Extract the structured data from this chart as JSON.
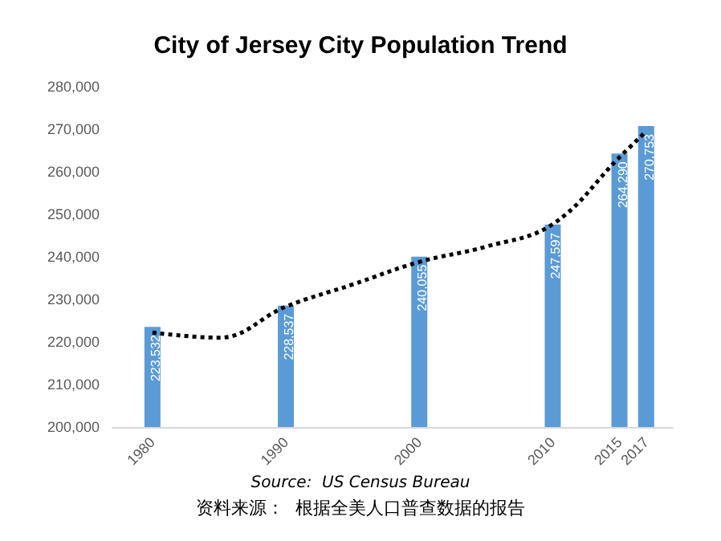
{
  "chart_data": {
    "type": "bar",
    "title": "City of Jersey City Population Trend",
    "x": [
      1980,
      1990,
      2000,
      2010,
      2015,
      2017
    ],
    "xlim": [
      1977,
      2019
    ],
    "xticks": [
      1980,
      1990,
      2000,
      2010,
      2015,
      2017
    ],
    "ylim": [
      200000,
      280000
    ],
    "yticks": [
      {
        "value": 200000,
        "label": "200,000"
      },
      {
        "value": 210000,
        "label": "210,000"
      },
      {
        "value": 220000,
        "label": "220,000"
      },
      {
        "value": 230000,
        "label": "230,000"
      },
      {
        "value": 240000,
        "label": "240,000"
      },
      {
        "value": 250000,
        "label": "250,000"
      },
      {
        "value": 260000,
        "label": "260,000"
      },
      {
        "value": 270000,
        "label": "270,000"
      },
      {
        "value": 280000,
        "label": "280,000"
      }
    ],
    "series": [
      {
        "color": "#5b9bd5",
        "values": [
          223532,
          228537,
          240055,
          247597,
          264290,
          270753
        ],
        "value_labels": [
          "223,532",
          "228,537",
          "240,055",
          "247,597",
          "264,290",
          "270,753"
        ]
      },
      {
        "type": "line",
        "color": "#000000",
        "line_style": "dotted",
        "marker": "none",
        "x": [
          1980,
          1985,
          1990,
          1995,
          2000,
          2005,
          2010,
          2015,
          2017
        ],
        "values": [
          222200,
          221000,
          228300,
          233500,
          238800,
          242400,
          247700,
          263400,
          269500
        ]
      }
    ],
    "grid": false,
    "annotations": [
      "Source:  US Census Bureau",
      "资料来源：  根据全美人口普查数据的报告"
    ]
  }
}
